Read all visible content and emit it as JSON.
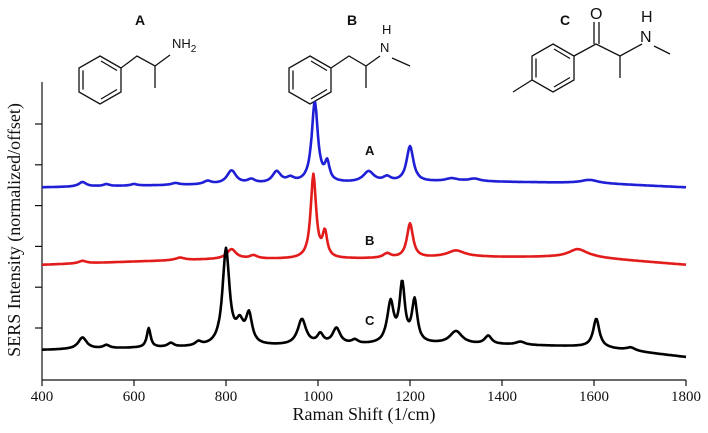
{
  "structures": [
    {
      "label": "A",
      "atoms": [
        "NH",
        "2"
      ]
    },
    {
      "label": "B",
      "atoms": [
        "H",
        "N"
      ]
    },
    {
      "label": "C",
      "atoms": [
        "O",
        "H",
        "N"
      ]
    }
  ],
  "chart_data": {
    "type": "line",
    "title": "",
    "xlabel": "Raman Shift (1/cm)",
    "ylabel": "SERS Intensity (normalized/offset)",
    "xlim": [
      400,
      1800
    ],
    "xticks": [
      400,
      600,
      800,
      1000,
      1200,
      1400,
      1600,
      1800
    ],
    "ytick_count": 6,
    "grid": false,
    "series": [
      {
        "name": "A",
        "color": "#1f1fd6",
        "baseline": [
          [
            400,
            0.27
          ],
          [
            600,
            0.32
          ],
          [
            800,
            0.36
          ],
          [
            1000,
            0.39
          ],
          [
            1200,
            0.42
          ],
          [
            1300,
            0.46
          ],
          [
            1400,
            0.44
          ],
          [
            1600,
            0.4
          ],
          [
            1800,
            0.27
          ]
        ],
        "peaks": [
          [
            488,
            0.14,
            10
          ],
          [
            540,
            0.06,
            8
          ],
          [
            600,
            0.05,
            8
          ],
          [
            690,
            0.06,
            10
          ],
          [
            760,
            0.1,
            10
          ],
          [
            812,
            0.42,
            12
          ],
          [
            855,
            0.12,
            10
          ],
          [
            910,
            0.36,
            11
          ],
          [
            940,
            0.14,
            10
          ],
          [
            993,
            2.52,
            8
          ],
          [
            1020,
            0.56,
            6
          ],
          [
            1110,
            0.34,
            14
          ],
          [
            1150,
            0.15,
            10
          ],
          [
            1200,
            1.12,
            9
          ],
          [
            1290,
            0.08,
            15
          ],
          [
            1340,
            0.08,
            15
          ],
          [
            1590,
            0.1,
            22
          ]
        ]
      },
      {
        "name": "B",
        "color": "#e21b1b",
        "baseline": [
          [
            400,
            0.1
          ],
          [
            600,
            0.2
          ],
          [
            800,
            0.28
          ],
          [
            1000,
            0.28
          ],
          [
            1200,
            0.3
          ],
          [
            1300,
            0.36
          ],
          [
            1400,
            0.34
          ],
          [
            1500,
            0.34
          ],
          [
            1600,
            0.32
          ],
          [
            1800,
            0.1
          ]
        ],
        "peaks": [
          [
            488,
            0.08,
            10
          ],
          [
            700,
            0.08,
            12
          ],
          [
            812,
            0.3,
            12
          ],
          [
            860,
            0.1,
            10
          ],
          [
            990,
            2.62,
            7
          ],
          [
            1015,
            0.76,
            6
          ],
          [
            1150,
            0.14,
            10
          ],
          [
            1200,
            1.08,
            8
          ],
          [
            1300,
            0.18,
            22
          ],
          [
            1565,
            0.26,
            25
          ]
        ]
      },
      {
        "name": "C",
        "color": "#000000",
        "baseline": [
          [
            400,
            0.0
          ],
          [
            600,
            0.06
          ],
          [
            800,
            0.1
          ],
          [
            1000,
            0.14
          ],
          [
            1200,
            0.18
          ],
          [
            1400,
            0.16
          ],
          [
            1600,
            0.1
          ],
          [
            1800,
            -0.22
          ]
        ],
        "peaks": [
          [
            488,
            0.36,
            11
          ],
          [
            540,
            0.1,
            8
          ],
          [
            632,
            0.6,
            5
          ],
          [
            680,
            0.12,
            8
          ],
          [
            740,
            0.12,
            8
          ],
          [
            800,
            3.0,
            9
          ],
          [
            830,
            0.6,
            10
          ],
          [
            850,
            0.9,
            8
          ],
          [
            965,
            0.8,
            11
          ],
          [
            1005,
            0.3,
            8
          ],
          [
            1040,
            0.5,
            10
          ],
          [
            1080,
            0.12,
            8
          ],
          [
            1150,
            0.1,
            8
          ],
          [
            1158,
            1.2,
            8
          ],
          [
            1183,
            1.8,
            7
          ],
          [
            1210,
            1.3,
            7
          ],
          [
            1300,
            0.4,
            16
          ],
          [
            1370,
            0.26,
            9
          ],
          [
            1440,
            0.1,
            12
          ],
          [
            1605,
            0.88,
            8
          ],
          [
            1680,
            0.1,
            12
          ]
        ]
      }
    ],
    "annotations": [
      "A",
      "B",
      "C"
    ]
  }
}
